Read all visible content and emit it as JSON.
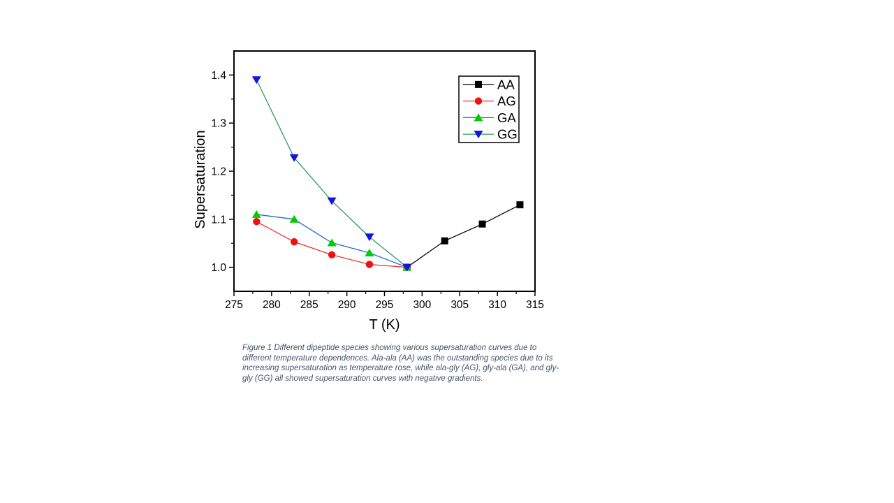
{
  "chart_data": {
    "type": "line",
    "title": "",
    "xlabel": "T (K)",
    "ylabel": "Supersaturation",
    "xlim": [
      275,
      315
    ],
    "ylim": [
      0.95,
      1.45
    ],
    "grid": false,
    "x_major_ticks": [
      275,
      280,
      285,
      290,
      295,
      300,
      305,
      310,
      315
    ],
    "x_tick_labels": [
      "275",
      "280",
      "285",
      "290",
      "295",
      "300",
      "305",
      "310",
      "315"
    ],
    "x_minor_ticks": [
      277.5,
      282.5,
      287.5,
      292.5,
      297.5,
      302.5,
      307.5,
      312.5
    ],
    "y_major_ticks": [
      1.0,
      1.1,
      1.2,
      1.3,
      1.4
    ],
    "y_tick_labels": [
      "1.0",
      "1.1",
      "1.2",
      "1.3",
      "1.4"
    ],
    "y_minor_ticks": [
      1.05,
      1.15,
      1.25,
      1.35
    ],
    "legend": {
      "position": "top-right",
      "entries": [
        "AA",
        "AG",
        "GA",
        "GG"
      ]
    },
    "series": [
      {
        "name": "AA",
        "marker": "square",
        "marker_color": "#000000",
        "line_color": "#000000",
        "x": [
          298,
          303,
          308,
          313
        ],
        "y": [
          1.0,
          1.055,
          1.09,
          1.13
        ]
      },
      {
        "name": "AG",
        "marker": "circle",
        "marker_color": "#ee1111",
        "line_color": "#ee2f2f",
        "x": [
          278,
          283,
          288,
          293,
          298
        ],
        "y": [
          1.095,
          1.053,
          1.026,
          1.006,
          1.0
        ]
      },
      {
        "name": "GA",
        "marker": "triangle-up",
        "marker_color": "#00cc00",
        "line_color": "#1f6fc5",
        "x": [
          278,
          283,
          288,
          293,
          298
        ],
        "y": [
          1.11,
          1.1,
          1.051,
          1.03,
          1.0
        ]
      },
      {
        "name": "GG",
        "marker": "triangle-down",
        "marker_color": "#1414e0",
        "line_color": "#2d9b64",
        "x": [
          278,
          283,
          288,
          293,
          298
        ],
        "y": [
          1.39,
          1.228,
          1.138,
          1.063,
          1.0
        ]
      }
    ]
  },
  "caption": {
    "line1": "Figure 1 Different dipeptide species showing various supersaturation curves due to",
    "line2": "different temperature dependences. Ala-ala (AA) was the outstanding species due to its",
    "line3": "increasing supersaturation as temperature rose, while ala-gly (AG), gly-ala (GA), and gly-",
    "line4": "gly (GG) all showed supersaturation curves with negative gradients.",
    "color": "#44546A"
  }
}
